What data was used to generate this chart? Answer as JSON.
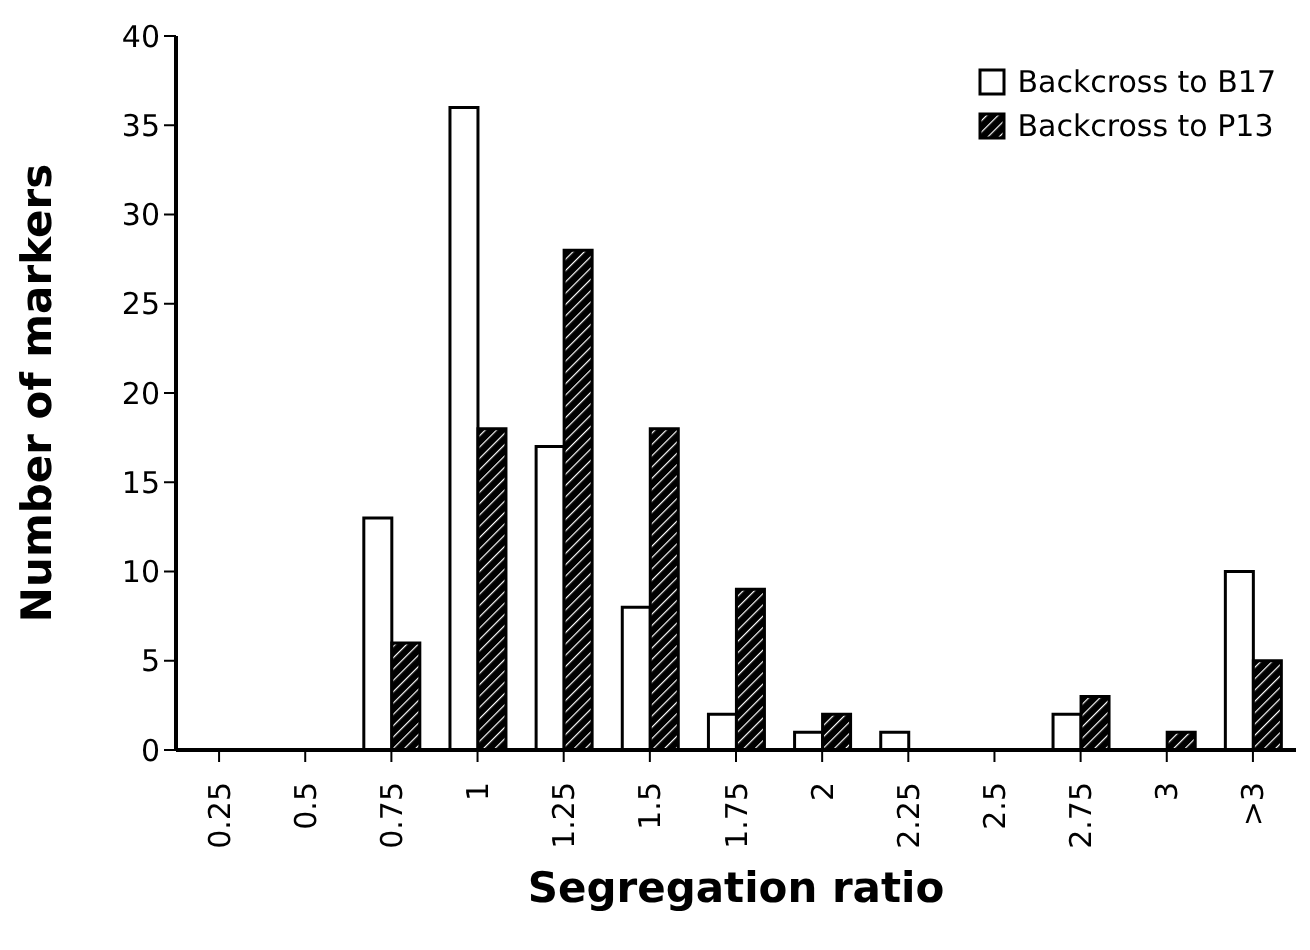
{
  "chart_data": {
    "type": "bar",
    "xlabel": "Segregation ratio",
    "ylabel": "Number of markers",
    "categories": [
      "0.25",
      "0.5",
      "0.75",
      "1",
      "1.25",
      "1.5",
      "1.75",
      "2",
      "2.25",
      "2.5",
      "2.75",
      "3",
      ">3"
    ],
    "series": [
      {
        "name": "Backcross to B17",
        "color": "#ffffff",
        "values": [
          0,
          0,
          13,
          36,
          17,
          8,
          2,
          1,
          1,
          0,
          2,
          0,
          10
        ]
      },
      {
        "name": "Backcross to P13",
        "color": "#000000",
        "values": [
          0,
          0,
          6,
          18,
          28,
          18,
          9,
          2,
          0,
          0,
          3,
          1,
          5
        ]
      }
    ],
    "ylim": [
      0,
      40
    ],
    "yticks": [
      0,
      5,
      10,
      15,
      20,
      25,
      30,
      35,
      40
    ],
    "grid": false,
    "legend": "top right"
  }
}
